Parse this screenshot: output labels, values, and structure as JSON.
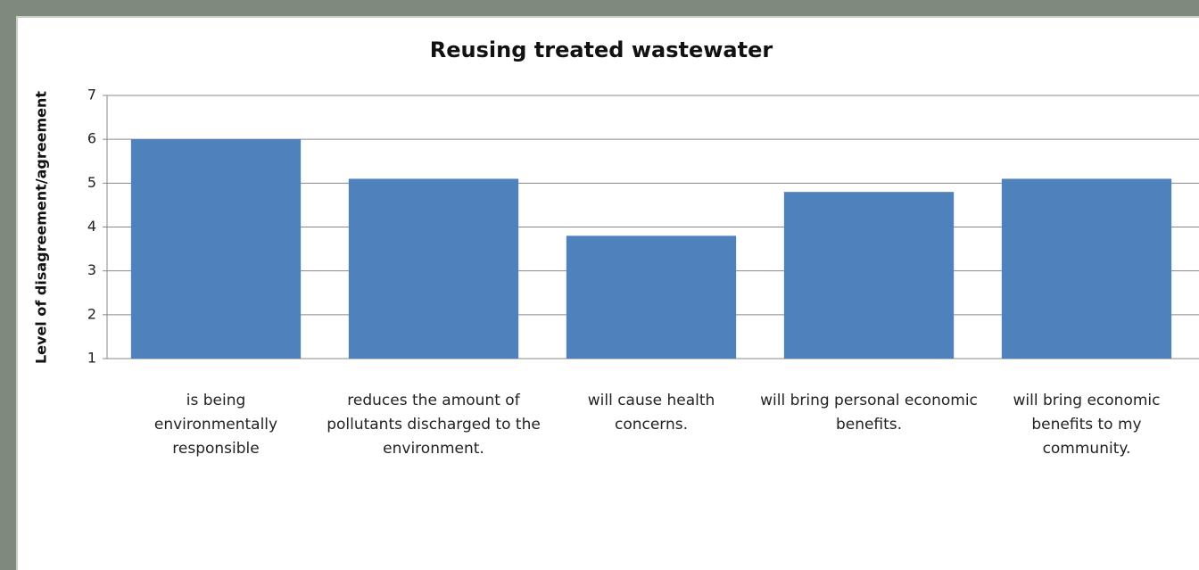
{
  "chart_data": {
    "type": "bar",
    "title": "Reusing treated wastewater",
    "ylabel": "Level of disagreement/agreement",
    "categories": [
      "is being environmentally responsible",
      "reduces the amount of pollutants discharged to the environment.",
      "will cause health concerns.",
      "will bring personal economic benefits.",
      "will bring economic benefits to my community."
    ],
    "values": [
      6.0,
      5.1,
      3.8,
      4.8,
      5.1
    ],
    "color": "#4f81bd",
    "ylim": [
      1,
      7
    ],
    "yticks": [
      1,
      2,
      3,
      4,
      5,
      6,
      7
    ],
    "grid": true
  }
}
